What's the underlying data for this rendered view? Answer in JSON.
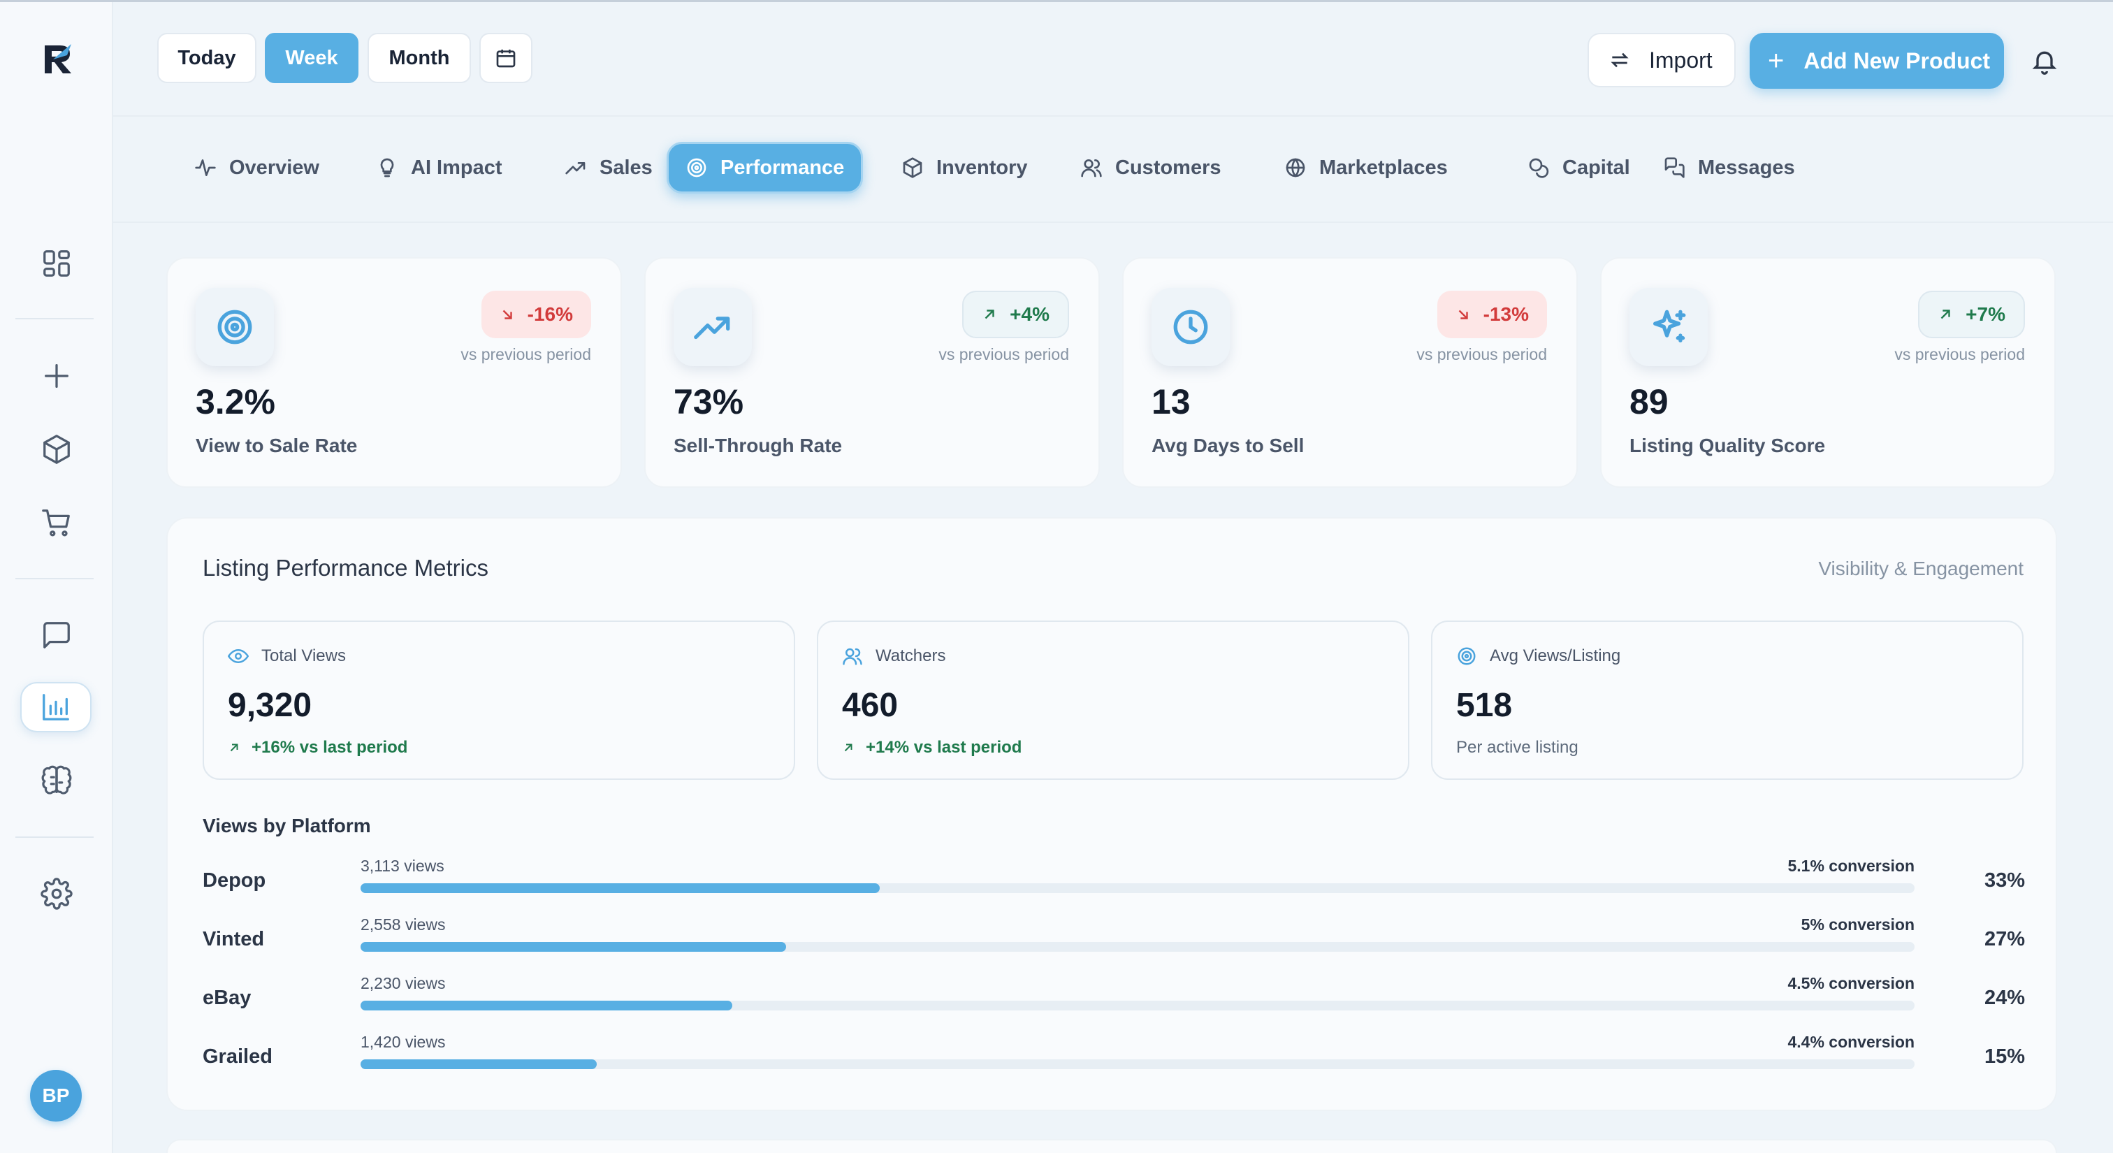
{
  "header": {
    "range_buttons": [
      "Today",
      "Week",
      "Month"
    ],
    "active_range": "Week",
    "import_label": "Import",
    "add_product_label": "Add New Product"
  },
  "nav": {
    "tabs": [
      "Overview",
      "AI Impact",
      "Sales",
      "Performance",
      "Inventory",
      "Customers",
      "Marketplaces",
      "Capital",
      "Messages"
    ],
    "active": "Performance"
  },
  "user": {
    "initials": "BP"
  },
  "kpis": [
    {
      "value": "3.2%",
      "label": "View to Sale Rate",
      "change": "-16%",
      "direction": "down",
      "sub": "vs previous period",
      "icon": "target-icon"
    },
    {
      "value": "73%",
      "label": "Sell-Through Rate",
      "change": "+4%",
      "direction": "up",
      "sub": "vs previous period",
      "icon": "trending-up-icon"
    },
    {
      "value": "13",
      "label": "Avg Days to Sell",
      "change": "-13%",
      "direction": "down",
      "sub": "vs previous period",
      "icon": "clock-icon"
    },
    {
      "value": "89",
      "label": "Listing Quality Score",
      "change": "+7%",
      "direction": "up",
      "sub": "vs previous period",
      "icon": "sparkles-icon"
    }
  ],
  "panel": {
    "title": "Listing Performance Metrics",
    "subtitle": "Visibility & Engagement",
    "metrics": [
      {
        "label": "Total Views",
        "value": "9,320",
        "foot": "+16% vs last period",
        "icon": "eye-icon"
      },
      {
        "label": "Watchers",
        "value": "460",
        "foot": "+14% vs last period",
        "icon": "users-icon"
      },
      {
        "label": "Avg Views/Listing",
        "value": "518",
        "foot": "Per active listing",
        "icon": "target-icon"
      }
    ],
    "platforms_title": "Views by Platform",
    "platforms": [
      {
        "name": "Depop",
        "views": "3,113 views",
        "conversion": "5.1% conversion",
        "share": "33%",
        "share_value": 33.4
      },
      {
        "name": "Vinted",
        "views": "2,558 views",
        "conversion": "5% conversion",
        "share": "27%",
        "share_value": 27.4
      },
      {
        "name": "eBay",
        "views": "2,230 views",
        "conversion": "4.5% conversion",
        "share": "24%",
        "share_value": 23.9
      },
      {
        "name": "Grailed",
        "views": "1,420 views",
        "conversion": "4.4% conversion",
        "share": "15%",
        "share_value": 15.2
      }
    ]
  },
  "colors": {
    "accent": "#58afe3",
    "down": "#d23b3b",
    "up": "#1f7a4c"
  }
}
